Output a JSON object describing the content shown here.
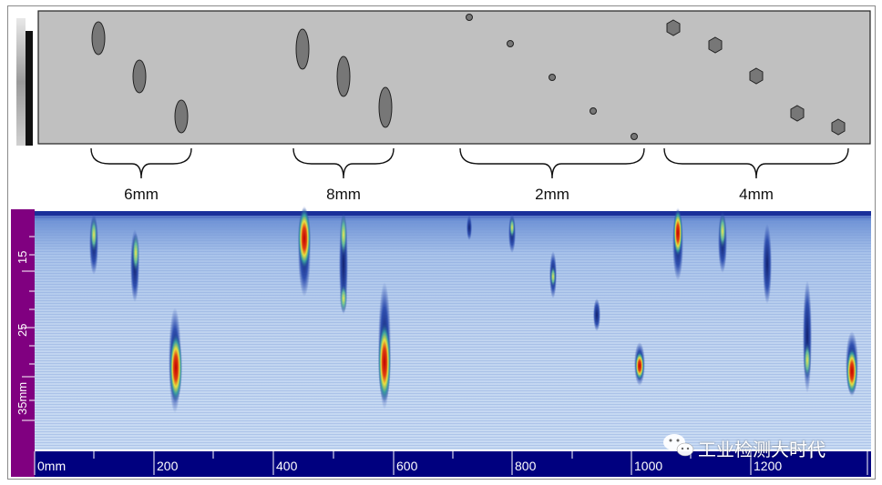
{
  "defect_groups": [
    {
      "label": "6mm",
      "shape": "ellipse"
    },
    {
      "label": "8mm",
      "shape": "ellipse"
    },
    {
      "label": "2mm",
      "shape": "small-circle"
    },
    {
      "label": "4mm",
      "shape": "hexagon"
    }
  ],
  "depth_scale": {
    "ticks": [
      "15",
      "25",
      "35mm"
    ]
  },
  "position_scale": {
    "ticks": [
      "0mm",
      "200",
      "400",
      "600",
      "800",
      "1000",
      "1200"
    ]
  },
  "watermark": {
    "icon": "wechat-icon",
    "text": "工业检测大时代"
  },
  "colors": {
    "schematic_bg": "#c0c0c0",
    "scan_bg": "#b9cfe9",
    "axis_bar": "#00007f",
    "depth_bar": "#800080",
    "hot": "#cc0000",
    "warm": "#e8e840"
  }
}
